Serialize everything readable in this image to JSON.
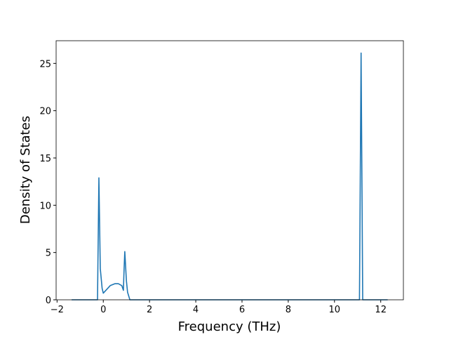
{
  "chart_data": {
    "type": "line",
    "xlabel": "Frequency (THz)",
    "ylabel": "Density of States",
    "x": [
      -1.37,
      -0.25,
      -0.19,
      -0.13,
      -0.05,
      0.0,
      0.15,
      0.3,
      0.5,
      0.65,
      0.8,
      0.87,
      0.9,
      0.93,
      1.0,
      1.05,
      1.15,
      11.08,
      11.15,
      11.22,
      12.3
    ],
    "values": [
      0,
      0,
      12.9,
      3.3,
      1.2,
      0.7,
      1.1,
      1.5,
      1.7,
      1.7,
      1.5,
      1.0,
      3.3,
      5.1,
      2.0,
      0.8,
      0,
      0,
      26.1,
      0,
      0
    ],
    "color": "#1f77b4",
    "xlim": [
      -2.04,
      12.98
    ],
    "ylim": [
      0,
      27.4
    ],
    "xticks": [
      {
        "value": -2,
        "label": "−2"
      },
      0,
      2,
      4,
      6,
      8,
      10,
      12
    ],
    "yticks": [
      0,
      5,
      10,
      15,
      20,
      25
    ]
  }
}
